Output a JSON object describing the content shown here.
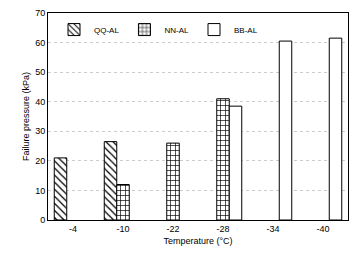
{
  "chart_data": {
    "type": "bar",
    "x_label": "Temperature (°C)",
    "y_label": "Failure pressure (kPa)",
    "categories": [
      "-4",
      "-10",
      "-22",
      "-28",
      "-34",
      "-40"
    ],
    "series": [
      {
        "name": "QQ-AL",
        "color": "#ffffff",
        "marker": "diagonal",
        "values": [
          21,
          26.5,
          null,
          null,
          null,
          null
        ]
      },
      {
        "name": "NN-AL",
        "color": "#ffffff",
        "marker": "grid",
        "values": [
          null,
          12,
          26,
          41,
          null,
          null
        ]
      },
      {
        "name": "BB-AL",
        "color": "#ffffff",
        "marker": "plain",
        "values": [
          null,
          null,
          null,
          38.5,
          60.5,
          61.5
        ]
      }
    ],
    "ylim": [
      0,
      70
    ],
    "yticks": [
      0,
      10,
      20,
      30,
      40,
      50,
      60,
      70
    ],
    "grid": true,
    "legend": "top-left"
  }
}
